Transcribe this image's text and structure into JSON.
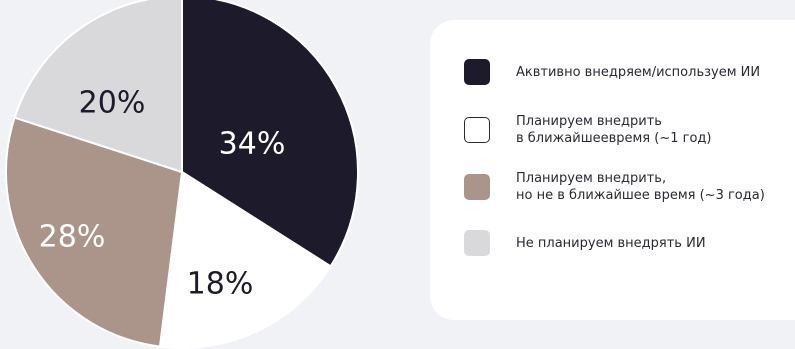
{
  "chart_data": {
    "type": "pie",
    "title": "",
    "slices": [
      {
        "label_lines": [
          "Аквтивно внедряем/используем ИИ"
        ],
        "value": 34,
        "value_label": "34%",
        "color": "#1c1a2b",
        "text_color": "#ffffff",
        "border": "#1c1a2b"
      },
      {
        "label_lines": [
          "Планируем внедрить",
          "в ближайшеевремя (~1 год)"
        ],
        "value": 18,
        "value_label": "18%",
        "color": "#ffffff",
        "text_color": "#1c1a2b",
        "border": "#2a2a33"
      },
      {
        "label_lines": [
          "Планируем внедрить,",
          "но не в ближайшее время (~3 года)"
        ],
        "value": 28,
        "value_label": "28%",
        "color": "#ab9489",
        "text_color": "#ffffff",
        "border": "#ab9489"
      },
      {
        "label_lines": [
          "Не планируем внедрять ИИ"
        ],
        "value": 20,
        "value_label": "20%",
        "color": "#d9d9dc",
        "text_color": "#1c1a2b",
        "border": "#d9d9dc"
      }
    ],
    "legend_position": "right"
  }
}
